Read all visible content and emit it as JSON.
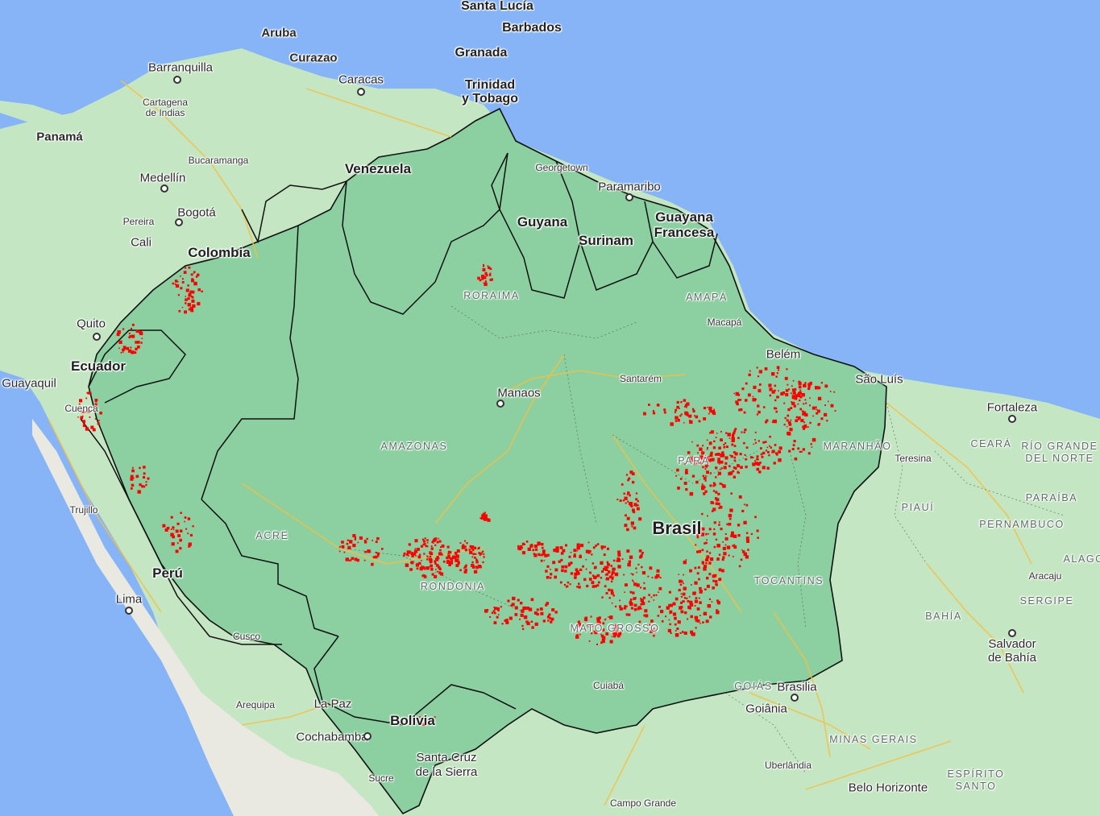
{
  "map": {
    "colors": {
      "ocean": "#86b4f6",
      "land": "#c5e6c3",
      "land_dark": "#b4dcb1",
      "forest": "#8ccfa0",
      "andes": "#e9e9e2",
      "road": "#f5c042",
      "border": "#111111",
      "fire": "#ff0000"
    },
    "countries": [
      "Venezuela",
      "Colombia",
      "Ecuador",
      "Perú",
      "Bolivia",
      "Guyana",
      "Surinam",
      "Guayana Francesa",
      "Brasil",
      "Panamá"
    ],
    "cities": [
      "Aruba",
      "Curazao",
      "Barranquilla",
      "Cartagena de Indias",
      "Caracas",
      "Bucaramanga",
      "Medellín",
      "Bogotá",
      "Pereira",
      "Cali",
      "Quito",
      "Guayaquil",
      "Cuenca",
      "Trujillo",
      "Lima",
      "Cusco",
      "Arequipa",
      "La Paz",
      "Cochabamba",
      "Sucre",
      "Santa Cruz de la Sierra",
      "Georgetown",
      "Paramaribo",
      "Macapá",
      "Belém",
      "São Luís",
      "Fortaleza",
      "Teresina",
      "Santarém",
      "Manaos",
      "Cuiabá",
      "Brasilia",
      "Goiânia",
      "Uberlândia",
      "Belo Horizonte",
      "Campo Grande",
      "Aracaju",
      "Salvador de Bahía",
      "Santa Lucía",
      "Barbados",
      "Granada",
      "Trinidad y Tobago"
    ],
    "states": [
      "RORAIMA",
      "AMAPÁ",
      "AMAZONAS",
      "PARÁ",
      "MARANHÃO",
      "CEARÁ",
      "RÍO GRANDE DEL NORTE",
      "PARAÍBA",
      "PERNAMBUCO",
      "PIAUÍ",
      "ACRE",
      "RONDONIA",
      "MATO GROSSO",
      "TOCANTINS",
      "BAHÍA",
      "SERGIPE",
      "ALAGOAS",
      "GOIÁS",
      "MINAS GERAIS",
      "ESPÍRITO SANTO"
    ],
    "labels": {
      "santa_lucia": "Santa Lucía",
      "barbados": "Barbados",
      "granada": "Granada",
      "trinidad": "Trinidad\ny Tobago",
      "aruba": "Aruba",
      "curazao": "Curazao",
      "barranquilla": "Barranquilla",
      "cartagena": "Cartagena\nde Indias",
      "caracas": "Caracas",
      "panama": "Panamá",
      "venezuela": "Venezuela",
      "bucaramanga": "Bucaramanga",
      "medellin": "Medellín",
      "georgetown": "Georgetown",
      "paramaribo": "Paramaribo",
      "pereira": "Pereira",
      "bogota": "Bogotá",
      "guyana": "Guyana",
      "guayana_francesa": "Guayana\nFrancesa",
      "surinam": "Surinam",
      "cali": "Cali",
      "colombia": "Colombia",
      "roraima": "RORAIMA",
      "amapa": "AMAPÁ",
      "quito": "Quito",
      "macapa": "Macapá",
      "belem": "Belém",
      "ecuador": "Ecuador",
      "guayaquil": "Guayaquil",
      "sao_luis": "São Luís",
      "santarem": "Santarém",
      "manaos": "Manaos",
      "cuenca": "Cuenca",
      "fortaleza": "Fortaleza",
      "amazonas": "AMAZONAS",
      "maranhao": "MARANHÃO",
      "ceara": "CEARÁ",
      "rio_grande": "RÍO GRANDE\nDEL NORTE",
      "teresina": "Teresina",
      "para": "PARÁ",
      "trujillo": "Trujillo",
      "paraiba": "PARAÍBA",
      "piaui": "PIAUÍ",
      "pernambuco": "PERNAMBUCO",
      "brasil": "Brasil",
      "acre": "ACRE",
      "alagoas": "ALAGO",
      "peru": "Perú",
      "aracaju": "Aracaju",
      "tocantins": "TOCANTINS",
      "rondonia": "RONDONIA",
      "lima": "Lima",
      "sergipe": "SERGIPE",
      "bahia": "BAHÍA",
      "mato_grosso": "MATO GROSSO",
      "cusco": "Cusco",
      "salvador": "Salvador\nde Bahía",
      "goias": "GOIÁS",
      "brasilia": "Brasilia",
      "cuiaba": "Cuiabá",
      "arequipa": "Arequipa",
      "la_paz": "La Paz",
      "goiania": "Goiânia",
      "bolivia": "Bolivia",
      "cochabamba": "Cochabamba",
      "minas_gerais": "MINAS GERAIS",
      "santa_cruz": "Santa Cruz\nde la Sierra",
      "uberlandia": "Uberlândia",
      "espirito_santo": "ESPÍRITO\nSANTO",
      "sucre": "Sucre",
      "belo_horizonte": "Belo Horizonte",
      "campo_grande": "Campo Grande"
    }
  }
}
